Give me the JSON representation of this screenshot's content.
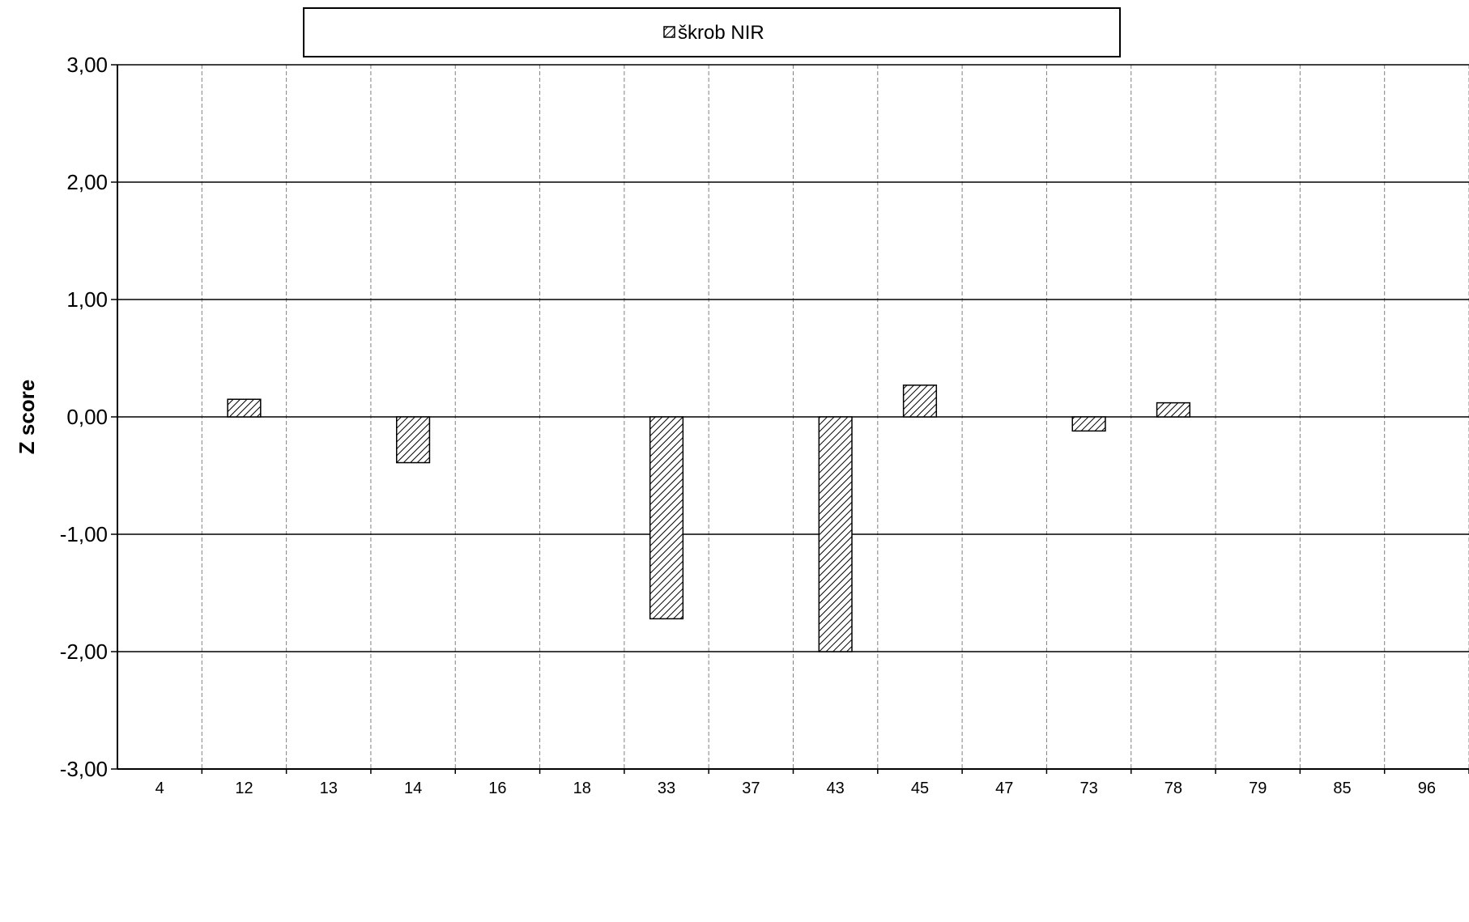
{
  "chart_data": {
    "type": "bar",
    "ylabel": "Z score",
    "xlabel": "",
    "ylim": [
      -3,
      3
    ],
    "yticks": [
      3,
      2,
      1,
      0,
      -1,
      -2,
      -3
    ],
    "ytick_labels": [
      "3,00",
      "2,00",
      "1,00",
      "0,00",
      "-1,00",
      "-2,00",
      "-3,00"
    ],
    "categories": [
      "4",
      "12",
      "13",
      "14",
      "16",
      "18",
      "33",
      "37",
      "43",
      "45",
      "47",
      "73",
      "78",
      "79",
      "85",
      "96"
    ],
    "series": [
      {
        "name": "škrob NIR",
        "values": [
          null,
          0.15,
          null,
          -0.39,
          null,
          null,
          -1.72,
          null,
          -2.0,
          0.27,
          null,
          -0.12,
          0.12,
          null,
          null,
          null
        ]
      }
    ],
    "legend": {
      "placement": "top",
      "pattern": "diagonal-hatch"
    },
    "grid": {
      "horizontal": "solid",
      "vertical": "dashed"
    },
    "colors": {
      "bar_fill": "#ffffff",
      "bar_hatch": "#000000",
      "grid_h": "#000000",
      "grid_v": "#808080"
    }
  }
}
